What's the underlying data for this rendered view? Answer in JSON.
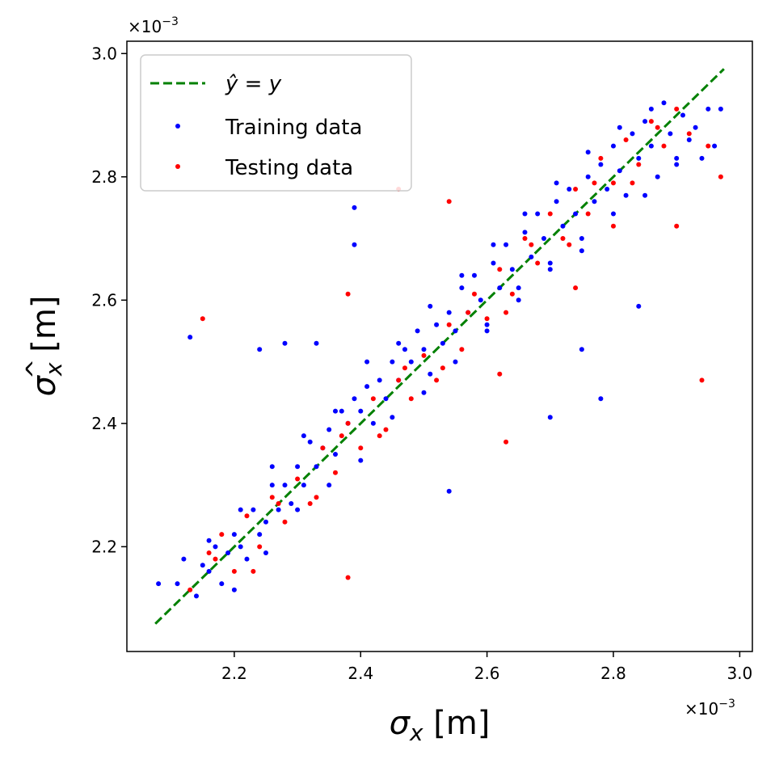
{
  "chart_data": {
    "type": "scatter",
    "title": "",
    "xlabel": "σx [m]",
    "ylabel": "σx̂ [m]",
    "xlabel_text": "σ",
    "xlabel_sub": "x",
    "xlabel_unit": " [m]",
    "ylabel_text": "σ",
    "ylabel_sub": "x",
    "ylabel_unit": " [m]",
    "x_scale_text": "×10",
    "y_scale_text": "×10",
    "scale_exponent": "−3",
    "xlim": [
      2.03,
      3.02
    ],
    "ylim": [
      2.03,
      3.02
    ],
    "xticks": [
      2.2,
      2.4,
      2.6,
      2.8,
      3.0
    ],
    "yticks": [
      2.2,
      2.4,
      2.6,
      2.8,
      3.0
    ],
    "xtick_labels": [
      "2.2",
      "2.4",
      "2.6",
      "2.8",
      "3.0"
    ],
    "ytick_labels": [
      "2.2",
      "2.4",
      "2.6",
      "2.8",
      "3.0"
    ],
    "legend_position": "top-left",
    "reference_line": {
      "name": "ŷ = y",
      "label_text": "ŷ = y",
      "from": [
        2.075,
        2.075
      ],
      "to": [
        2.975,
        2.975
      ],
      "color": "#008000",
      "style": "dashed"
    },
    "series": [
      {
        "name": "Training data",
        "label_text": "Training data",
        "color": "#0000ff",
        "points": [
          [
            2.08,
            2.14
          ],
          [
            2.11,
            2.14
          ],
          [
            2.12,
            2.18
          ],
          [
            2.13,
            2.54
          ],
          [
            2.14,
            2.12
          ],
          [
            2.15,
            2.17
          ],
          [
            2.16,
            2.16
          ],
          [
            2.17,
            2.2
          ],
          [
            2.18,
            2.14
          ],
          [
            2.19,
            2.19
          ],
          [
            2.2,
            2.22
          ],
          [
            2.21,
            2.2
          ],
          [
            2.22,
            2.18
          ],
          [
            2.23,
            2.26
          ],
          [
            2.24,
            2.52
          ],
          [
            2.24,
            2.22
          ],
          [
            2.25,
            2.24
          ],
          [
            2.26,
            2.3
          ],
          [
            2.27,
            2.26
          ],
          [
            2.28,
            2.53
          ],
          [
            2.28,
            2.3
          ],
          [
            2.29,
            2.27
          ],
          [
            2.3,
            2.33
          ],
          [
            2.31,
            2.3
          ],
          [
            2.32,
            2.37
          ],
          [
            2.33,
            2.53
          ],
          [
            2.33,
            2.33
          ],
          [
            2.34,
            2.36
          ],
          [
            2.35,
            2.39
          ],
          [
            2.36,
            2.35
          ],
          [
            2.37,
            2.42
          ],
          [
            2.38,
            2.4
          ],
          [
            2.39,
            2.75
          ],
          [
            2.39,
            2.69
          ],
          [
            2.39,
            2.44
          ],
          [
            2.4,
            2.42
          ],
          [
            2.41,
            2.46
          ],
          [
            2.42,
            2.4
          ],
          [
            2.43,
            2.47
          ],
          [
            2.44,
            2.44
          ],
          [
            2.45,
            2.5
          ],
          [
            2.46,
            2.47
          ],
          [
            2.47,
            2.52
          ],
          [
            2.48,
            2.5
          ],
          [
            2.49,
            2.55
          ],
          [
            2.5,
            2.52
          ],
          [
            2.51,
            2.48
          ],
          [
            2.52,
            2.56
          ],
          [
            2.53,
            2.53
          ],
          [
            2.54,
            2.29
          ],
          [
            2.54,
            2.58
          ],
          [
            2.55,
            2.55
          ],
          [
            2.56,
            2.62
          ],
          [
            2.57,
            2.58
          ],
          [
            2.58,
            2.64
          ],
          [
            2.59,
            2.6
          ],
          [
            2.6,
            2.56
          ],
          [
            2.61,
            2.66
          ],
          [
            2.62,
            2.62
          ],
          [
            2.63,
            2.69
          ],
          [
            2.64,
            2.65
          ],
          [
            2.65,
            2.6
          ],
          [
            2.66,
            2.71
          ],
          [
            2.67,
            2.67
          ],
          [
            2.68,
            2.74
          ],
          [
            2.69,
            2.7
          ],
          [
            2.7,
            2.41
          ],
          [
            2.7,
            2.66
          ],
          [
            2.71,
            2.76
          ],
          [
            2.72,
            2.72
          ],
          [
            2.73,
            2.78
          ],
          [
            2.74,
            2.74
          ],
          [
            2.75,
            2.52
          ],
          [
            2.75,
            2.7
          ],
          [
            2.76,
            2.8
          ],
          [
            2.77,
            2.76
          ],
          [
            2.78,
            2.44
          ],
          [
            2.78,
            2.82
          ],
          [
            2.79,
            2.78
          ],
          [
            2.8,
            2.85
          ],
          [
            2.81,
            2.81
          ],
          [
            2.82,
            2.77
          ],
          [
            2.83,
            2.87
          ],
          [
            2.84,
            2.59
          ],
          [
            2.84,
            2.83
          ],
          [
            2.85,
            2.89
          ],
          [
            2.86,
            2.85
          ],
          [
            2.87,
            2.8
          ],
          [
            2.88,
            2.92
          ],
          [
            2.89,
            2.87
          ],
          [
            2.9,
            2.83
          ],
          [
            2.91,
            2.9
          ],
          [
            2.92,
            2.86
          ],
          [
            2.93,
            2.88
          ],
          [
            2.94,
            2.83
          ],
          [
            2.95,
            2.91
          ],
          [
            2.96,
            2.85
          ],
          [
            2.97,
            2.91
          ],
          [
            2.2,
            2.13
          ],
          [
            2.25,
            2.19
          ],
          [
            2.3,
            2.26
          ],
          [
            2.35,
            2.3
          ],
          [
            2.4,
            2.34
          ],
          [
            2.45,
            2.41
          ],
          [
            2.5,
            2.45
          ],
          [
            2.55,
            2.5
          ],
          [
            2.6,
            2.55
          ],
          [
            2.65,
            2.62
          ],
          [
            2.7,
            2.65
          ],
          [
            2.75,
            2.68
          ],
          [
            2.8,
            2.74
          ],
          [
            2.85,
            2.77
          ],
          [
            2.9,
            2.82
          ],
          [
            2.16,
            2.21
          ],
          [
            2.21,
            2.26
          ],
          [
            2.26,
            2.33
          ],
          [
            2.31,
            2.38
          ],
          [
            2.36,
            2.42
          ],
          [
            2.41,
            2.5
          ],
          [
            2.46,
            2.53
          ],
          [
            2.51,
            2.59
          ],
          [
            2.56,
            2.64
          ],
          [
            2.61,
            2.69
          ],
          [
            2.66,
            2.74
          ],
          [
            2.71,
            2.79
          ],
          [
            2.76,
            2.84
          ],
          [
            2.81,
            2.88
          ],
          [
            2.86,
            2.91
          ]
        ]
      },
      {
        "name": "Testing data",
        "label_text": "Testing data",
        "color": "#ff0000",
        "points": [
          [
            2.13,
            2.13
          ],
          [
            2.15,
            2.57
          ],
          [
            2.16,
            2.19
          ],
          [
            2.18,
            2.22
          ],
          [
            2.2,
            2.16
          ],
          [
            2.22,
            2.25
          ],
          [
            2.24,
            2.2
          ],
          [
            2.26,
            2.28
          ],
          [
            2.28,
            2.24
          ],
          [
            2.3,
            2.31
          ],
          [
            2.32,
            2.27
          ],
          [
            2.34,
            2.36
          ],
          [
            2.36,
            2.32
          ],
          [
            2.38,
            2.61
          ],
          [
            2.38,
            2.15
          ],
          [
            2.38,
            2.4
          ],
          [
            2.4,
            2.36
          ],
          [
            2.42,
            2.44
          ],
          [
            2.44,
            2.39
          ],
          [
            2.46,
            2.78
          ],
          [
            2.46,
            2.47
          ],
          [
            2.48,
            2.44
          ],
          [
            2.5,
            2.51
          ],
          [
            2.52,
            2.47
          ],
          [
            2.54,
            2.76
          ],
          [
            2.54,
            2.56
          ],
          [
            2.56,
            2.52
          ],
          [
            2.58,
            2.61
          ],
          [
            2.6,
            2.57
          ],
          [
            2.62,
            2.48
          ],
          [
            2.62,
            2.65
          ],
          [
            2.63,
            2.37
          ],
          [
            2.64,
            2.61
          ],
          [
            2.66,
            2.7
          ],
          [
            2.68,
            2.66
          ],
          [
            2.7,
            2.74
          ],
          [
            2.72,
            2.7
          ],
          [
            2.74,
            2.62
          ],
          [
            2.74,
            2.78
          ],
          [
            2.76,
            2.74
          ],
          [
            2.78,
            2.83
          ],
          [
            2.8,
            2.72
          ],
          [
            2.8,
            2.79
          ],
          [
            2.82,
            2.86
          ],
          [
            2.84,
            2.82
          ],
          [
            2.86,
            2.89
          ],
          [
            2.88,
            2.85
          ],
          [
            2.9,
            2.72
          ],
          [
            2.9,
            2.91
          ],
          [
            2.92,
            2.87
          ],
          [
            2.94,
            2.47
          ],
          [
            2.95,
            2.85
          ],
          [
            2.97,
            2.8
          ],
          [
            2.17,
            2.18
          ],
          [
            2.27,
            2.27
          ],
          [
            2.37,
            2.38
          ],
          [
            2.47,
            2.49
          ],
          [
            2.57,
            2.58
          ],
          [
            2.67,
            2.69
          ],
          [
            2.77,
            2.79
          ],
          [
            2.87,
            2.88
          ],
          [
            2.23,
            2.16
          ],
          [
            2.33,
            2.28
          ],
          [
            2.43,
            2.38
          ],
          [
            2.53,
            2.49
          ],
          [
            2.63,
            2.58
          ],
          [
            2.73,
            2.69
          ],
          [
            2.83,
            2.79
          ]
        ]
      }
    ]
  }
}
